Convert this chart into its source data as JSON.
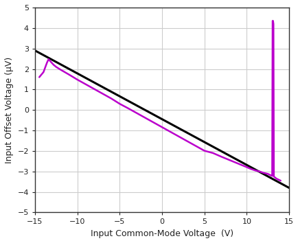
{
  "xlabel": "Input Common-Mode Voltage  (V)",
  "ylabel": "Input Offset Voltage (μV)",
  "xlim": [
    -15,
    15
  ],
  "ylim": [
    -5,
    5
  ],
  "xticks": [
    -15,
    -10,
    -5,
    0,
    5,
    10,
    15
  ],
  "yticks": [
    -5,
    -4,
    -3,
    -2,
    -1,
    0,
    1,
    2,
    3,
    4,
    5
  ],
  "background_color": "#ffffff",
  "grid_color": "#cccccc",
  "black_line": {
    "x": [
      -15,
      15
    ],
    "y": [
      2.9,
      -3.8
    ],
    "color": "#000000",
    "linewidth": 2.2
  },
  "purple_line": {
    "x": [
      -14.5,
      -14.0,
      -13.6,
      -13.4,
      -13.2,
      -12.8,
      -12.5,
      -12.0,
      -11.5,
      -11.0,
      -10.0,
      -9.0,
      -8.0,
      -7.0,
      -6.0,
      -5.0,
      -4.0,
      -3.0,
      -2.0,
      -1.0,
      0.0,
      1.0,
      2.0,
      3.0,
      4.0,
      5.0,
      6.0,
      7.0,
      8.0,
      9.0,
      10.0,
      10.5,
      11.0,
      11.5,
      12.0,
      12.5,
      12.8,
      12.9,
      13.0,
      13.05,
      13.1,
      13.15,
      13.2,
      13.5,
      14.0
    ],
    "y": [
      1.6,
      1.85,
      2.3,
      2.48,
      2.38,
      2.2,
      2.1,
      1.97,
      1.85,
      1.73,
      1.48,
      1.25,
      1.02,
      0.79,
      0.56,
      0.3,
      0.08,
      -0.15,
      -0.38,
      -0.61,
      -0.84,
      -1.07,
      -1.3,
      -1.53,
      -1.76,
      -1.99,
      -2.1,
      -2.28,
      -2.45,
      -2.62,
      -2.79,
      -2.88,
      -2.95,
      -3.0,
      -3.07,
      -3.12,
      -3.18,
      -3.2,
      -3.22,
      4.35,
      4.35,
      4.2,
      -3.25,
      -3.35,
      -3.45
    ],
    "color": "#bb00cc",
    "linewidth": 1.8
  }
}
